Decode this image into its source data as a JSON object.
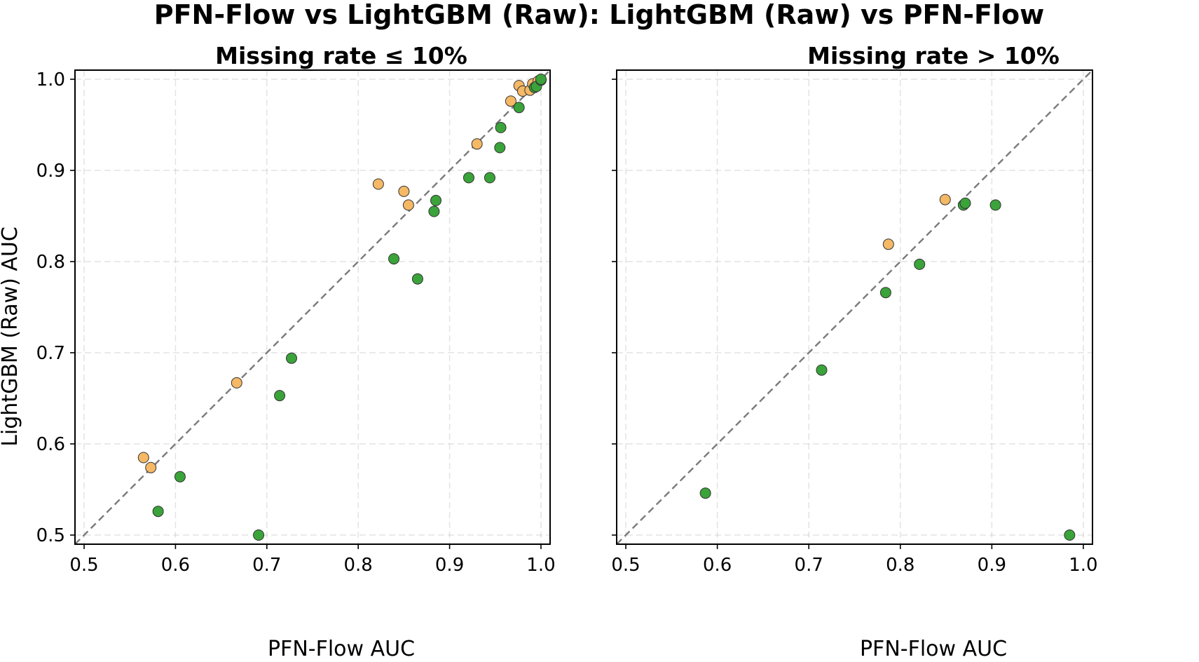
{
  "suptitle": "PFN-Flow vs LightGBM (Raw): LightGBM (Raw) vs PFN-Flow",
  "colors": {
    "lgbm_better": "#f5b865",
    "pfn_better": "#3aa33a",
    "diagonal": "#7a7a7a"
  },
  "chart_data": [
    {
      "type": "scatter",
      "title": "Missing rate ≤ 10%",
      "xlabel": "PFN-Flow AUC",
      "ylabel": "LightGBM (Raw) AUC",
      "xlim": [
        0.49,
        1.01
      ],
      "ylim": [
        0.49,
        1.01
      ],
      "xticks": [
        "0.5",
        "0.6",
        "0.7",
        "0.8",
        "0.9",
        "1.0"
      ],
      "yticks": [
        "0.5",
        "0.6",
        "0.7",
        "0.8",
        "0.9",
        "1.0"
      ],
      "grid": true,
      "reference_line": "y = x",
      "series": [
        {
          "color_key": "lgbm_better",
          "points": [
            [
              0.565,
              0.585
            ],
            [
              0.573,
              0.574
            ],
            [
              0.667,
              0.667
            ],
            [
              0.822,
              0.885
            ],
            [
              0.85,
              0.877
            ],
            [
              0.855,
              0.862
            ],
            [
              0.93,
              0.929
            ],
            [
              0.967,
              0.976
            ],
            [
              0.976,
              0.993
            ],
            [
              0.98,
              0.987
            ],
            [
              0.988,
              0.988
            ],
            [
              0.991,
              0.995
            ],
            [
              0.997,
              0.998
            ]
          ]
        },
        {
          "color_key": "pfn_better",
          "points": [
            [
              0.581,
              0.526
            ],
            [
              0.605,
              0.564
            ],
            [
              0.691,
              0.5
            ],
            [
              0.714,
              0.653
            ],
            [
              0.727,
              0.694
            ],
            [
              0.839,
              0.803
            ],
            [
              0.865,
              0.781
            ],
            [
              0.883,
              0.855
            ],
            [
              0.885,
              0.867
            ],
            [
              0.921,
              0.892
            ],
            [
              0.944,
              0.892
            ],
            [
              0.955,
              0.925
            ],
            [
              0.956,
              0.947
            ],
            [
              0.976,
              0.969
            ],
            [
              0.993,
              0.991
            ],
            [
              0.995,
              0.992
            ],
            [
              1.0,
              0.999
            ],
            [
              1.0,
              1.0
            ]
          ]
        }
      ]
    },
    {
      "type": "scatter",
      "title": "Missing rate > 10%",
      "xlabel": "PFN-Flow AUC",
      "ylabel": "",
      "xlim": [
        0.49,
        1.01
      ],
      "ylim": [
        0.49,
        1.01
      ],
      "xticks": [
        "0.5",
        "0.6",
        "0.7",
        "0.8",
        "0.9",
        "1.0"
      ],
      "yticks": [],
      "grid": true,
      "reference_line": "y = x",
      "series": [
        {
          "color_key": "lgbm_better",
          "points": [
            [
              0.787,
              0.819
            ],
            [
              0.849,
              0.868
            ]
          ]
        },
        {
          "color_key": "pfn_better",
          "points": [
            [
              0.587,
              0.546
            ],
            [
              0.714,
              0.681
            ],
            [
              0.784,
              0.766
            ],
            [
              0.821,
              0.797
            ],
            [
              0.869,
              0.862
            ],
            [
              0.871,
              0.864
            ],
            [
              0.904,
              0.862
            ],
            [
              0.985,
              0.5
            ]
          ]
        }
      ]
    }
  ]
}
